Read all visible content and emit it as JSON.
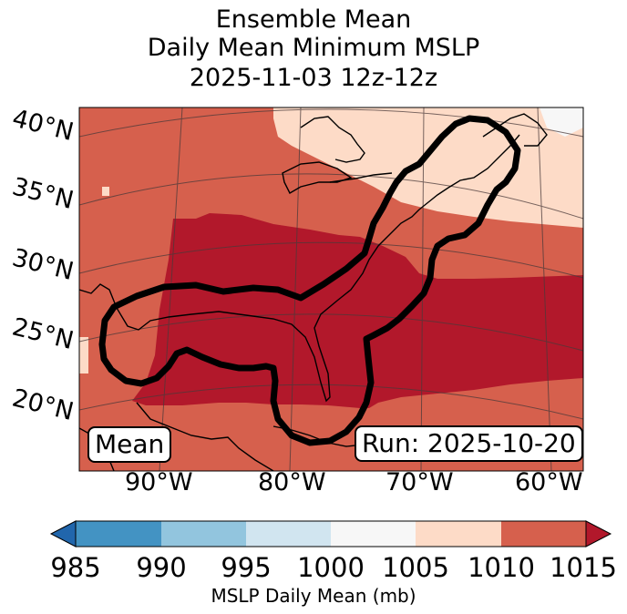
{
  "title": {
    "line1": "Ensemble Mean",
    "line2": "Daily Mean Minimum MSLP",
    "line3": "2025-11-03 12z-12z"
  },
  "map": {
    "lat_labels": [
      "40°N",
      "35°N",
      "30°N",
      "25°N",
      "20°N"
    ],
    "lon_labels": [
      "90°W",
      "80°W",
      "70°W",
      "60°W"
    ],
    "mean_label": "Mean",
    "run_label": "Run: 2025-10-20"
  },
  "colorbar": {
    "ticks": [
      "985",
      "990",
      "995",
      "1000",
      "1005",
      "1010",
      "1015"
    ],
    "label": "MSLP Daily Mean (mb)",
    "colors": {
      "under": "#2166ac",
      "985-990": "#4393c3",
      "990-995": "#92c5de",
      "995-1000": "#d1e5f0",
      "1000-1005": "#f7f7f7",
      "1005-1010": "#fddbc7",
      "1010-1015": "#d6604d",
      "over": "#b2182b"
    }
  }
}
